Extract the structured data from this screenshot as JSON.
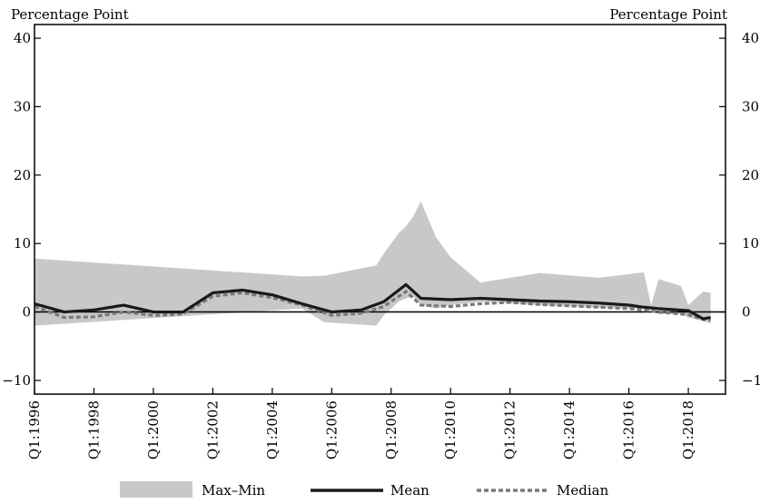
{
  "colors": {
    "band": "#c8c8c8",
    "mean": "#1a1a1a",
    "median": "#7a7a7a",
    "axis": "#000000",
    "zero_line": "#000000"
  },
  "chart_data": {
    "type": "area",
    "ylabel_left": "Percentage Point",
    "ylabel_right": "Percentage Point",
    "ylim": [
      -12,
      42
    ],
    "yticks": [
      -10,
      0,
      10,
      20,
      30,
      40
    ],
    "xlim": [
      1996,
      2019.25
    ],
    "xticks": [
      {
        "x": 1996,
        "label": "Q1:1996"
      },
      {
        "x": 1998,
        "label": "Q1:1998"
      },
      {
        "x": 2000,
        "label": "Q1:2000"
      },
      {
        "x": 2002,
        "label": "Q1:2002"
      },
      {
        "x": 2004,
        "label": "Q1:2004"
      },
      {
        "x": 2006,
        "label": "Q1:2006"
      },
      {
        "x": 2008,
        "label": "Q1:2008"
      },
      {
        "x": 2010,
        "label": "Q1:2010"
      },
      {
        "x": 2012,
        "label": "Q1:2012"
      },
      {
        "x": 2014,
        "label": "Q1:2014"
      },
      {
        "x": 2016,
        "label": "Q1:2016"
      },
      {
        "x": 2018,
        "label": "Q1:2018"
      }
    ],
    "legend": {
      "placement": "bottom",
      "entries": [
        {
          "key": "band",
          "label": "Max–Min"
        },
        {
          "key": "mean",
          "label": "Mean"
        },
        {
          "key": "median",
          "label": "Median"
        }
      ]
    },
    "series": [
      {
        "key": "band",
        "x": [
          1996,
          2005,
          2005.75,
          2007.5,
          2007.75,
          2008.25,
          2008.5,
          2008.75,
          2009,
          2009.5,
          2010,
          2011,
          2013,
          2015,
          2016.5,
          2016.75,
          2017,
          2017.75,
          2018,
          2018.5,
          2018.75
        ],
        "max": [
          7.8,
          5.2,
          5.3,
          6.8,
          8.5,
          11.5,
          12.5,
          14.0,
          16.2,
          11.0,
          8.0,
          4.3,
          5.7,
          5.0,
          5.8,
          1.0,
          4.8,
          3.8,
          1.0,
          3.0,
          2.8
        ],
        "min": [
          -2.0,
          0.5,
          -1.5,
          -2.0,
          -0.5,
          1.5,
          2.0,
          2.3,
          1.0,
          0.5,
          1.0,
          1.5,
          1.0,
          0.6,
          0.5,
          0.2,
          -0.3,
          -0.3,
          -0.8,
          -1.3,
          -1.7
        ]
      },
      {
        "key": "mean",
        "x": [
          1996,
          1997,
          1998,
          1999,
          2000,
          2001,
          2002,
          2003,
          2004,
          2005,
          2006,
          2007,
          2007.75,
          2008.5,
          2009,
          2010,
          2011,
          2012,
          2013,
          2014,
          2015,
          2016,
          2016.5,
          2017,
          2018,
          2018.5,
          2018.75
        ],
        "values": [
          1.2,
          0.0,
          0.3,
          1.0,
          0.0,
          0.0,
          2.8,
          3.2,
          2.5,
          1.2,
          0.0,
          0.3,
          1.5,
          4.0,
          2.0,
          1.8,
          2.0,
          1.8,
          1.6,
          1.5,
          1.3,
          1.0,
          0.7,
          0.5,
          0.2,
          -1.0,
          -0.8
        ]
      },
      {
        "key": "median",
        "x": [
          1996,
          1997,
          1998,
          1999,
          2000,
          2001,
          2002,
          2003,
          2004,
          2005,
          2006,
          2007,
          2007.75,
          2008.5,
          2009,
          2010,
          2011,
          2012,
          2013,
          2014,
          2015,
          2016,
          2016.5,
          2017,
          2018,
          2018.5,
          2018.75
        ],
        "values": [
          0.8,
          -0.8,
          -0.7,
          0.0,
          -0.5,
          -0.3,
          2.3,
          2.8,
          2.1,
          1.0,
          -0.5,
          -0.2,
          0.8,
          3.0,
          1.0,
          0.8,
          1.2,
          1.4,
          1.1,
          0.9,
          0.7,
          0.5,
          0.3,
          0.0,
          -0.4,
          -1.1,
          -1.2
        ]
      }
    ]
  }
}
